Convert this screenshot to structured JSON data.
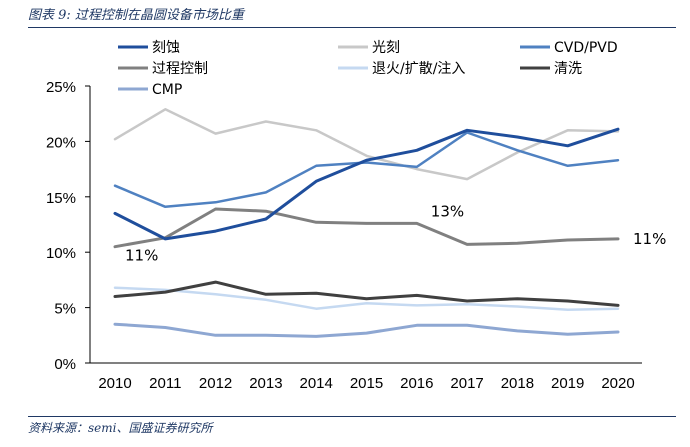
{
  "figure_title": "图表 9: 过程控制在晶圆设备市场比重",
  "source_note": "资料来源：semi、国盛证券研究所",
  "chart_data": {
    "type": "line",
    "x": [
      2010,
      2011,
      2012,
      2013,
      2014,
      2015,
      2016,
      2017,
      2018,
      2019,
      2020
    ],
    "ylim": [
      0,
      25
    ],
    "yticks": [
      "0%",
      "5%",
      "10%",
      "15%",
      "20%",
      "25%"
    ],
    "xlabel": "",
    "ylabel": "",
    "grid": false,
    "legend_position": "top",
    "series": [
      {
        "name": "刻蚀",
        "color": "#1f4e9c",
        "width": 3,
        "values": [
          13.5,
          11.2,
          11.9,
          13.0,
          16.4,
          18.3,
          19.2,
          21.0,
          20.4,
          19.6,
          21.1
        ]
      },
      {
        "name": "光刻",
        "color": "#c8c8c8",
        "width": 2.5,
        "values": [
          20.2,
          22.9,
          20.7,
          21.8,
          21.0,
          18.7,
          17.5,
          16.6,
          19.0,
          21.0,
          20.9
        ]
      },
      {
        "name": "CVD/PVD",
        "color": "#4f81c1",
        "width": 2.5,
        "values": [
          16.0,
          14.1,
          14.5,
          15.4,
          17.8,
          18.1,
          17.7,
          20.8,
          19.2,
          17.8,
          18.3
        ]
      },
      {
        "name": "过程控制",
        "color": "#808080",
        "width": 3,
        "values": [
          10.5,
          11.3,
          13.9,
          13.7,
          12.7,
          12.6,
          12.6,
          10.7,
          10.8,
          11.1,
          11.2
        ]
      },
      {
        "name": "退火/扩散/注入",
        "color": "#c5d9f1",
        "width": 2.5,
        "values": [
          6.8,
          6.6,
          6.2,
          5.7,
          4.9,
          5.4,
          5.2,
          5.3,
          5.1,
          4.8,
          4.9
        ]
      },
      {
        "name": "清洗",
        "color": "#404040",
        "width": 3,
        "values": [
          6.0,
          6.4,
          7.3,
          6.2,
          6.3,
          5.8,
          6.1,
          5.6,
          5.8,
          5.6,
          5.2
        ]
      },
      {
        "name": "CMP",
        "color": "#8ea7d2",
        "width": 3,
        "values": [
          3.5,
          3.2,
          2.5,
          2.5,
          2.4,
          2.7,
          3.4,
          3.4,
          2.9,
          2.6,
          2.8
        ]
      }
    ],
    "annotations": [
      {
        "text": "11%",
        "series": "过程控制",
        "x": 2010
      },
      {
        "text": "13%",
        "series": "过程控制",
        "x": 2016
      },
      {
        "text": "11%",
        "series": "过程控制",
        "x": 2020
      }
    ]
  }
}
